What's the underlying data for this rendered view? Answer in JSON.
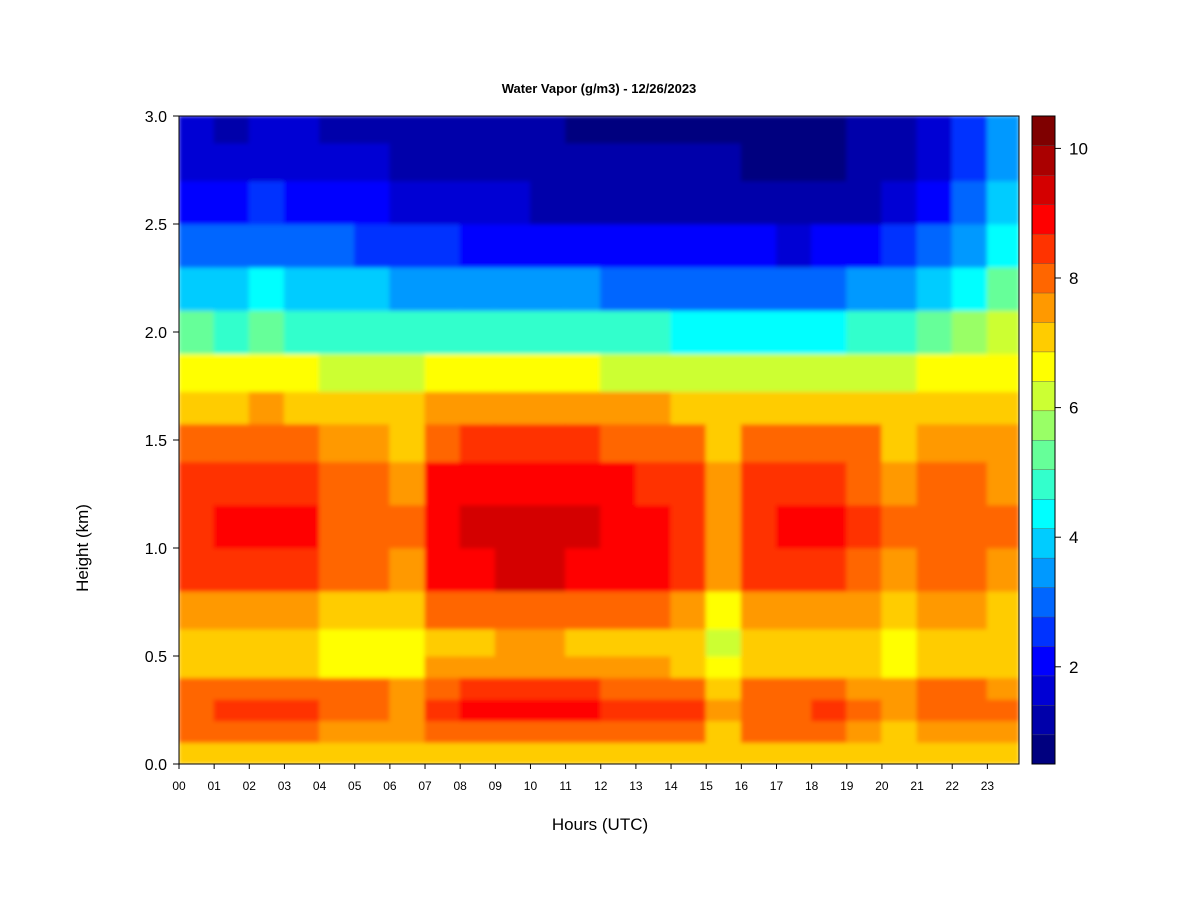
{
  "chart_data": {
    "type": "heatmap",
    "title": "Water Vapor (g/m3) - 12/26/2023",
    "xlabel": "Hours (UTC)",
    "ylabel": "Height (km)",
    "xlim": [
      0,
      23.9
    ],
    "ylim": [
      0.0,
      3.0
    ],
    "x_ticks": [
      "00",
      "01",
      "02",
      "03",
      "04",
      "05",
      "06",
      "07",
      "08",
      "09",
      "10",
      "11",
      "12",
      "13",
      "14",
      "15",
      "16",
      "17",
      "18",
      "19",
      "20",
      "21",
      "22",
      "23"
    ],
    "y_ticks": [
      "0.0",
      "0.5",
      "1.0",
      "1.5",
      "2.0",
      "2.5",
      "3.0"
    ],
    "colorbar": {
      "range": [
        0.5,
        10.5
      ],
      "ticks": [
        "2",
        "4",
        "6",
        "8",
        "10"
      ],
      "tick_values": [
        2,
        4,
        6,
        8,
        10
      ],
      "levels": 20,
      "colors": [
        "#00007f",
        "#0000aa",
        "#0000d4",
        "#0000ff",
        "#0033ff",
        "#0066ff",
        "#0099ff",
        "#00ccff",
        "#00ffff",
        "#33ffcc",
        "#66ff99",
        "#99ff66",
        "#ccff33",
        "#ffff00",
        "#ffcc00",
        "#ff9900",
        "#ff6600",
        "#ff3300",
        "#ff0000",
        "#d40000",
        "#aa0000",
        "#7f0000"
      ]
    },
    "grid": false,
    "legend": "colorbar-right",
    "heights_km": [
      0.05,
      0.15,
      0.25,
      0.35,
      0.45,
      0.55,
      0.7,
      0.9,
      1.1,
      1.3,
      1.5,
      1.65,
      1.8,
      2.0,
      2.2,
      2.4,
      2.6,
      2.8,
      2.95
    ],
    "series": [
      {
        "hour": 0,
        "values": [
          7.0,
          7.8,
          8.2,
          8.0,
          7.2,
          7.0,
          7.6,
          8.4,
          8.6,
          8.3,
          7.8,
          7.0,
          6.5,
          5.2,
          4.0,
          3.0,
          2.2,
          1.8,
          1.6
        ]
      },
      {
        "hour": 1,
        "values": [
          7.0,
          7.8,
          8.3,
          8.0,
          7.0,
          6.9,
          7.5,
          8.5,
          8.8,
          8.5,
          8.0,
          7.2,
          6.5,
          5.0,
          3.8,
          2.8,
          2.0,
          1.6,
          1.4
        ]
      },
      {
        "hour": 2,
        "values": [
          7.0,
          7.8,
          8.4,
          8.1,
          7.2,
          7.0,
          7.6,
          8.6,
          8.9,
          8.6,
          8.1,
          7.4,
          6.6,
          5.2,
          4.2,
          3.2,
          2.4,
          1.8,
          1.5
        ]
      },
      {
        "hour": 3,
        "values": [
          7.0,
          7.8,
          8.4,
          8.1,
          7.0,
          7.0,
          7.5,
          8.4,
          8.7,
          8.5,
          8.0,
          7.3,
          6.5,
          5.0,
          3.9,
          3.0,
          2.2,
          1.7,
          1.5
        ]
      },
      {
        "hour": 4,
        "values": [
          7.0,
          7.6,
          8.0,
          7.8,
          6.8,
          6.8,
          7.2,
          8.0,
          8.2,
          8.0,
          7.6,
          7.0,
          6.4,
          5.0,
          3.8,
          2.8,
          2.0,
          1.6,
          1.4
        ]
      },
      {
        "hour": 5,
        "values": [
          7.0,
          7.6,
          8.0,
          7.8,
          6.8,
          6.8,
          7.2,
          8.0,
          8.1,
          7.9,
          7.5,
          7.0,
          6.4,
          5.0,
          3.8,
          2.7,
          1.9,
          1.5,
          1.3
        ]
      },
      {
        "hour": 6,
        "values": [
          7.0,
          7.4,
          7.6,
          7.4,
          6.6,
          6.6,
          7.0,
          7.6,
          7.8,
          7.6,
          7.2,
          6.9,
          6.3,
          4.8,
          3.6,
          2.6,
          1.8,
          1.4,
          1.2
        ]
      },
      {
        "hour": 7,
        "values": [
          7.2,
          8.0,
          8.6,
          8.2,
          7.4,
          7.2,
          7.8,
          8.8,
          9.0,
          8.7,
          8.2,
          7.5,
          6.6,
          5.0,
          3.6,
          2.4,
          1.6,
          1.3,
          1.1
        ]
      },
      {
        "hour": 8,
        "values": [
          7.3,
          8.2,
          8.7,
          8.3,
          7.5,
          7.3,
          8.0,
          9.0,
          9.2,
          8.8,
          8.3,
          7.6,
          6.6,
          5.0,
          3.5,
          2.3,
          1.5,
          1.2,
          1.0
        ]
      },
      {
        "hour": 9,
        "values": [
          7.3,
          8.2,
          8.8,
          8.4,
          7.6,
          7.4,
          8.1,
          9.2,
          9.3,
          9.0,
          8.4,
          7.7,
          6.7,
          5.0,
          3.5,
          2.3,
          1.5,
          1.2,
          1.0
        ]
      },
      {
        "hour": 10,
        "values": [
          7.3,
          8.2,
          8.8,
          8.4,
          7.6,
          7.4,
          8.1,
          9.3,
          9.4,
          9.1,
          8.4,
          7.7,
          6.6,
          4.9,
          3.4,
          2.2,
          1.4,
          1.1,
          1.0
        ]
      },
      {
        "hour": 11,
        "values": [
          7.3,
          8.1,
          8.7,
          8.3,
          7.5,
          7.3,
          8.0,
          9.1,
          9.2,
          8.9,
          8.3,
          7.6,
          6.5,
          4.8,
          3.3,
          2.1,
          1.4,
          1.1,
          0.9
        ]
      },
      {
        "hour": 12,
        "values": [
          7.2,
          8.0,
          8.6,
          8.2,
          7.4,
          7.2,
          7.9,
          8.9,
          9.0,
          8.7,
          8.2,
          7.5,
          6.4,
          4.7,
          3.2,
          2.1,
          1.4,
          1.1,
          0.9
        ]
      },
      {
        "hour": 13,
        "values": [
          7.2,
          8.0,
          8.6,
          8.2,
          7.4,
          7.2,
          7.8,
          8.8,
          8.9,
          8.6,
          8.1,
          7.4,
          6.3,
          4.6,
          3.2,
          2.0,
          1.3,
          1.0,
          0.9
        ]
      },
      {
        "hour": 14,
        "values": [
          7.1,
          7.9,
          8.4,
          8.1,
          7.3,
          7.1,
          7.6,
          8.5,
          8.6,
          8.3,
          7.9,
          7.2,
          6.2,
          4.5,
          3.1,
          2.0,
          1.3,
          1.0,
          0.9
        ]
      },
      {
        "hour": 15,
        "values": [
          7.0,
          7.2,
          7.4,
          7.2,
          6.6,
          6.4,
          6.8,
          7.4,
          7.6,
          7.4,
          7.1,
          6.9,
          6.1,
          4.4,
          3.1,
          2.0,
          1.3,
          1.0,
          0.8
        ]
      },
      {
        "hour": 16,
        "values": [
          7.1,
          7.8,
          8.2,
          7.9,
          7.1,
          7.0,
          7.5,
          8.4,
          8.6,
          8.4,
          8.0,
          7.2,
          6.2,
          4.5,
          3.0,
          1.9,
          1.2,
          0.9,
          0.8
        ]
      },
      {
        "hour": 17,
        "values": [
          7.1,
          7.8,
          8.2,
          7.9,
          7.1,
          7.0,
          7.6,
          8.6,
          8.8,
          8.5,
          8.1,
          7.3,
          6.2,
          4.4,
          2.9,
          1.8,
          1.1,
          0.8,
          0.7
        ]
      },
      {
        "hour": 18,
        "values": [
          7.1,
          7.8,
          8.3,
          8.0,
          7.2,
          7.1,
          7.7,
          8.6,
          8.8,
          8.5,
          8.1,
          7.3,
          6.3,
          4.5,
          3.0,
          1.9,
          1.2,
          0.9,
          0.8
        ]
      },
      {
        "hour": 19,
        "values": [
          7.0,
          7.6,
          8.0,
          7.7,
          7.0,
          6.9,
          7.4,
          8.2,
          8.4,
          8.2,
          7.8,
          7.1,
          6.3,
          4.8,
          3.3,
          2.1,
          1.4,
          1.1,
          1.0
        ]
      },
      {
        "hour": 20,
        "values": [
          7.0,
          7.3,
          7.6,
          7.4,
          6.7,
          6.6,
          7.0,
          7.6,
          7.8,
          7.6,
          7.3,
          6.9,
          6.4,
          5.0,
          3.6,
          2.4,
          1.6,
          1.3,
          1.2
        ]
      },
      {
        "hour": 21,
        "values": [
          7.0,
          7.6,
          8.0,
          7.8,
          7.1,
          7.0,
          7.4,
          7.9,
          8.0,
          7.9,
          7.6,
          7.0,
          6.5,
          5.2,
          4.0,
          2.8,
          2.0,
          1.7,
          1.6
        ]
      },
      {
        "hour": 22,
        "values": [
          7.0,
          7.6,
          8.0,
          7.8,
          7.1,
          7.0,
          7.4,
          7.8,
          7.9,
          7.8,
          7.5,
          7.0,
          6.6,
          5.6,
          4.5,
          3.5,
          2.8,
          2.5,
          2.4
        ]
      },
      {
        "hour": 23,
        "values": [
          7.0,
          7.6,
          7.9,
          7.7,
          7.0,
          6.9,
          7.3,
          7.6,
          7.8,
          7.7,
          7.5,
          7.1,
          6.8,
          6.0,
          5.2,
          4.4,
          3.8,
          3.5,
          3.4
        ]
      }
    ]
  }
}
